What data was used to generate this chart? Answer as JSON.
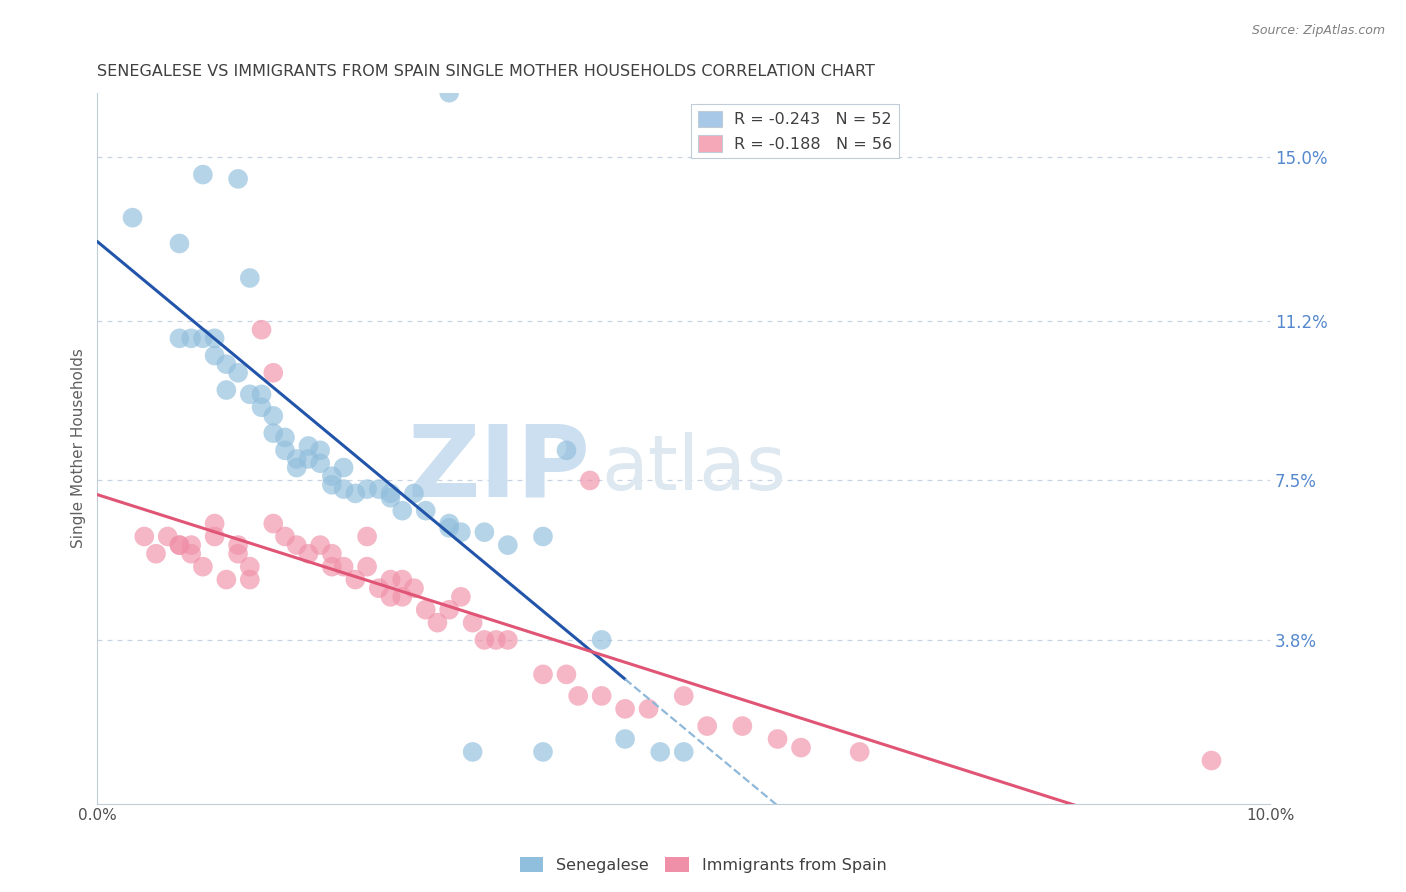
{
  "title": "SENEGALESE VS IMMIGRANTS FROM SPAIN SINGLE MOTHER HOUSEHOLDS CORRELATION CHART",
  "source": "Source: ZipAtlas.com",
  "ylabel": "Single Mother Households",
  "xlim": [
    0.0,
    0.1
  ],
  "ylim": [
    0.0,
    0.165
  ],
  "right_yticks": [
    0.038,
    0.075,
    0.112,
    0.15
  ],
  "right_yticklabels": [
    "3.8%",
    "7.5%",
    "11.2%",
    "15.0%"
  ],
  "legend_entries": [
    {
      "label": "R = -0.243   N = 52",
      "color": "#a8c8e8"
    },
    {
      "label": "R = -0.188   N = 56",
      "color": "#f4a8b8"
    }
  ],
  "senegalese_color": "#90bedd",
  "immigrants_color": "#f090a8",
  "senegalese_line_color": "#2255aa",
  "immigrants_line_color": "#e05575",
  "dashed_line_color": "#90b8d8",
  "watermark_zip": "ZIP",
  "watermark_atlas": "atlas",
  "watermark_color_zip": "#ccdff0",
  "watermark_color_atlas": "#dde8f0",
  "background_color": "#ffffff",
  "grid_color": "#c8d4e4",
  "title_color": "#404040",
  "title_fontsize": 11.5,
  "axis_label_color": "#606060",
  "right_axis_color": "#5588cc",
  "senegalese_x": [
    0.003,
    0.007,
    0.009,
    0.012,
    0.013,
    0.007,
    0.008,
    0.009,
    0.01,
    0.01,
    0.011,
    0.011,
    0.012,
    0.013,
    0.014,
    0.014,
    0.015,
    0.015,
    0.016,
    0.016,
    0.017,
    0.017,
    0.018,
    0.018,
    0.019,
    0.019,
    0.02,
    0.02,
    0.021,
    0.021,
    0.022,
    0.023,
    0.024,
    0.025,
    0.025,
    0.026,
    0.027,
    0.028,
    0.03,
    0.03,
    0.031,
    0.033,
    0.035,
    0.038,
    0.04,
    0.045,
    0.03,
    0.032,
    0.038,
    0.043,
    0.048,
    0.05
  ],
  "senegalese_y": [
    0.136,
    0.13,
    0.146,
    0.145,
    0.122,
    0.108,
    0.108,
    0.108,
    0.104,
    0.108,
    0.102,
    0.096,
    0.1,
    0.095,
    0.095,
    0.092,
    0.09,
    0.086,
    0.085,
    0.082,
    0.08,
    0.078,
    0.083,
    0.08,
    0.082,
    0.079,
    0.076,
    0.074,
    0.078,
    0.073,
    0.072,
    0.073,
    0.073,
    0.072,
    0.071,
    0.068,
    0.072,
    0.068,
    0.065,
    0.064,
    0.063,
    0.063,
    0.06,
    0.062,
    0.082,
    0.015,
    0.165,
    0.012,
    0.012,
    0.038,
    0.012,
    0.012
  ],
  "immigrants_x": [
    0.004,
    0.005,
    0.006,
    0.007,
    0.007,
    0.008,
    0.008,
    0.009,
    0.01,
    0.01,
    0.011,
    0.012,
    0.012,
    0.013,
    0.013,
    0.014,
    0.015,
    0.015,
    0.016,
    0.017,
    0.018,
    0.019,
    0.02,
    0.02,
    0.021,
    0.022,
    0.023,
    0.023,
    0.024,
    0.025,
    0.025,
    0.026,
    0.026,
    0.027,
    0.028,
    0.029,
    0.03,
    0.031,
    0.032,
    0.033,
    0.034,
    0.035,
    0.038,
    0.04,
    0.041,
    0.043,
    0.045,
    0.047,
    0.05,
    0.052,
    0.055,
    0.058,
    0.06,
    0.065,
    0.042,
    0.095
  ],
  "immigrants_y": [
    0.062,
    0.058,
    0.062,
    0.06,
    0.06,
    0.058,
    0.06,
    0.055,
    0.065,
    0.062,
    0.052,
    0.058,
    0.06,
    0.055,
    0.052,
    0.11,
    0.1,
    0.065,
    0.062,
    0.06,
    0.058,
    0.06,
    0.058,
    0.055,
    0.055,
    0.052,
    0.055,
    0.062,
    0.05,
    0.052,
    0.048,
    0.052,
    0.048,
    0.05,
    0.045,
    0.042,
    0.045,
    0.048,
    0.042,
    0.038,
    0.038,
    0.038,
    0.03,
    0.03,
    0.025,
    0.025,
    0.022,
    0.022,
    0.025,
    0.018,
    0.018,
    0.015,
    0.013,
    0.012,
    0.075,
    0.01
  ]
}
